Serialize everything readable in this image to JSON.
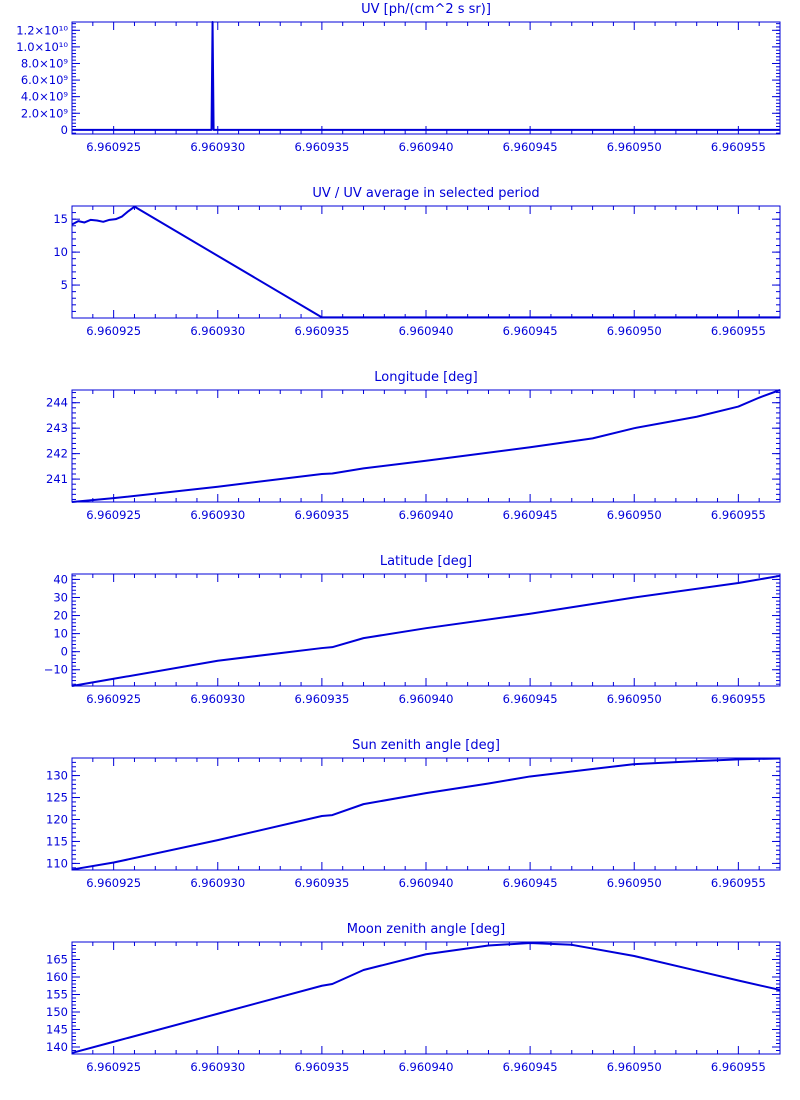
{
  "chart_data": [
    {
      "type": "line",
      "title": "UV [ph/(cm^2 s sr)]",
      "xlim": [
        6.960923,
        6.960957
      ],
      "ylim": [
        -500000000,
        13000000000
      ],
      "x_ticks": [
        "6.960925",
        "6.960930",
        "6.960935",
        "6.960940",
        "6.960945",
        "6.960950",
        "6.960955"
      ],
      "y_ticks": [
        {
          "value": 0,
          "label": "0"
        },
        {
          "value": 2000000000,
          "label": "2.0×10⁹"
        },
        {
          "value": 4000000000,
          "label": "4.0×10⁹"
        },
        {
          "value": 6000000000,
          "label": "6.0×10⁹"
        },
        {
          "value": 8000000000,
          "label": "8.0×10⁹"
        },
        {
          "value": 10000000000,
          "label": "1.0×10¹⁰"
        },
        {
          "value": 12000000000,
          "label": "1.2×10¹⁰"
        }
      ],
      "series": [
        {
          "x": [
            6.960923,
            6.9609297,
            6.96092975,
            6.9609298,
            6.960957
          ],
          "y": [
            0,
            0,
            13000000000,
            0,
            0
          ]
        }
      ]
    },
    {
      "type": "line",
      "title": "UV / UV average in selected period",
      "xlim": [
        6.960923,
        6.960957
      ],
      "ylim": [
        0,
        17
      ],
      "x_ticks": [
        "6.960925",
        "6.960930",
        "6.960935",
        "6.960940",
        "6.960945",
        "6.960950",
        "6.960955"
      ],
      "y_ticks": [
        {
          "value": 5,
          "label": "5"
        },
        {
          "value": 10,
          "label": "10"
        },
        {
          "value": 15,
          "label": "15"
        }
      ],
      "series": [
        {
          "x": [
            6.960923,
            6.9609233,
            6.9609236,
            6.9609239,
            6.9609242,
            6.9609245,
            6.9609248,
            6.9609251,
            6.9609254,
            6.9609257,
            6.960926,
            6.960935,
            6.960957
          ],
          "y": [
            14.2,
            14.7,
            14.5,
            14.9,
            14.8,
            14.6,
            14.9,
            15.0,
            15.4,
            16.2,
            16.9,
            0.1,
            0.1
          ]
        }
      ]
    },
    {
      "type": "line",
      "title": "Longitude [deg]",
      "xlim": [
        6.960923,
        6.960957
      ],
      "ylim": [
        240.1,
        244.5
      ],
      "x_ticks": [
        "6.960925",
        "6.960930",
        "6.960935",
        "6.960940",
        "6.960945",
        "6.960950",
        "6.960955"
      ],
      "y_ticks": [
        {
          "value": 241,
          "label": "241"
        },
        {
          "value": 242,
          "label": "242"
        },
        {
          "value": 243,
          "label": "243"
        },
        {
          "value": 244,
          "label": "244"
        }
      ],
      "series": [
        {
          "x": [
            6.960923,
            6.960925,
            6.96093,
            6.960935,
            6.9609355,
            6.960937,
            6.96094,
            6.960945,
            6.960948,
            6.96095,
            6.960953,
            6.960955,
            6.960956,
            6.960957
          ],
          "y": [
            240.1,
            240.25,
            240.7,
            241.2,
            241.22,
            241.42,
            241.72,
            242.25,
            242.6,
            243.0,
            243.45,
            243.85,
            244.2,
            244.5
          ]
        }
      ]
    },
    {
      "type": "line",
      "title": "Latitude [deg]",
      "xlim": [
        6.960923,
        6.960957
      ],
      "ylim": [
        -19,
        43
      ],
      "x_ticks": [
        "6.960925",
        "6.960930",
        "6.960935",
        "6.960940",
        "6.960945",
        "6.960950",
        "6.960955"
      ],
      "y_ticks": [
        {
          "value": -10,
          "label": "−10"
        },
        {
          "value": 0,
          "label": "0"
        },
        {
          "value": 10,
          "label": "10"
        },
        {
          "value": 20,
          "label": "20"
        },
        {
          "value": 30,
          "label": "30"
        },
        {
          "value": 40,
          "label": "40"
        }
      ],
      "series": [
        {
          "x": [
            6.960923,
            6.960925,
            6.96093,
            6.960935,
            6.9609355,
            6.960937,
            6.96094,
            6.960945,
            6.96095,
            6.960955,
            6.960957
          ],
          "y": [
            -19,
            -15,
            -5,
            2,
            2.5,
            7.5,
            13,
            21,
            30,
            38,
            42
          ]
        }
      ]
    },
    {
      "type": "line",
      "title": "Sun zenith angle [deg]",
      "xlim": [
        6.960923,
        6.960957
      ],
      "ylim": [
        108.5,
        134
      ],
      "x_ticks": [
        "6.960925",
        "6.960930",
        "6.960935",
        "6.960940",
        "6.960945",
        "6.960950",
        "6.960955"
      ],
      "y_ticks": [
        {
          "value": 110,
          "label": "110"
        },
        {
          "value": 115,
          "label": "115"
        },
        {
          "value": 120,
          "label": "120"
        },
        {
          "value": 125,
          "label": "125"
        },
        {
          "value": 130,
          "label": "130"
        }
      ],
      "series": [
        {
          "x": [
            6.960923,
            6.960925,
            6.96093,
            6.960935,
            6.9609355,
            6.960937,
            6.96094,
            6.960943,
            6.960945,
            6.960948,
            6.96095,
            6.960953,
            6.960955,
            6.960957
          ],
          "y": [
            108.6,
            110.2,
            115.3,
            120.8,
            121.0,
            123.5,
            126.0,
            128.2,
            129.8,
            131.5,
            132.6,
            133.3,
            133.7,
            133.9
          ]
        }
      ]
    },
    {
      "type": "line",
      "title": "Moon zenith angle [deg]",
      "xlim": [
        6.960923,
        6.960957
      ],
      "ylim": [
        138,
        170
      ],
      "x_ticks": [
        "6.960925",
        "6.960930",
        "6.960935",
        "6.960940",
        "6.960945",
        "6.960950",
        "6.960955"
      ],
      "y_ticks": [
        {
          "value": 140,
          "label": "140"
        },
        {
          "value": 145,
          "label": "145"
        },
        {
          "value": 150,
          "label": "150"
        },
        {
          "value": 155,
          "label": "155"
        },
        {
          "value": 160,
          "label": "160"
        },
        {
          "value": 165,
          "label": "165"
        }
      ],
      "series": [
        {
          "x": [
            6.960923,
            6.960925,
            6.96093,
            6.960935,
            6.9609355,
            6.960937,
            6.96094,
            6.960943,
            6.960945,
            6.960947,
            6.96095,
            6.960953,
            6.960955,
            6.960957
          ],
          "y": [
            138.3,
            141.5,
            149.5,
            157.5,
            158.0,
            162.0,
            166.5,
            169.0,
            169.7,
            169.2,
            166.0,
            161.8,
            159.0,
            156.3
          ]
        }
      ]
    }
  ]
}
